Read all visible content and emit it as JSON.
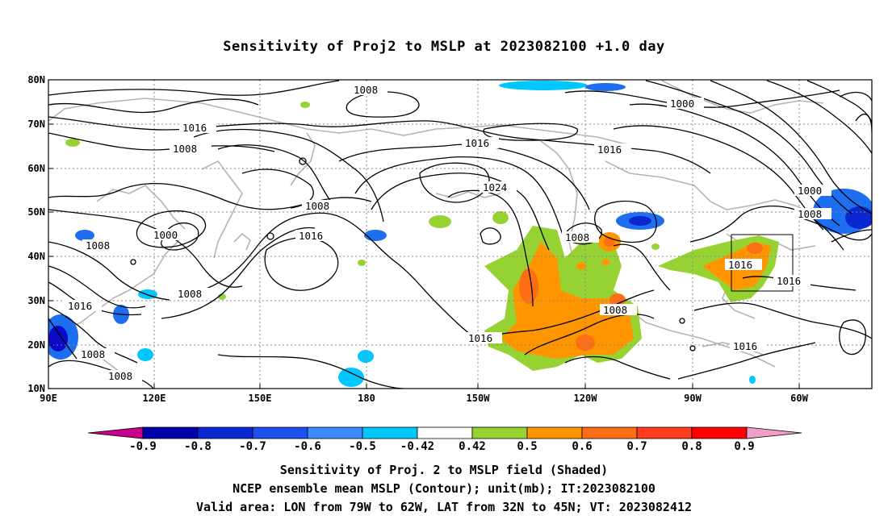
{
  "title": "Sensitivity of Proj2 to MSLP at 2023082100 +1.0 day",
  "map": {
    "lon_labels": [
      "90E",
      "120E",
      "150E",
      "180",
      "150W",
      "120W",
      "90W",
      "60W"
    ],
    "lat_labels": [
      "80N",
      "70N",
      "60N",
      "50N",
      "40N",
      "30N",
      "20N",
      "10N"
    ],
    "contour_labels": [
      "1008",
      "1016",
      "1008",
      "1008",
      "1000",
      "1008",
      "1016",
      "1008",
      "1016",
      "1008",
      "1016",
      "1024",
      "1016",
      "1008",
      "1008",
      "1016",
      "1000",
      "1016",
      "1000",
      "1008",
      "1016",
      "1016",
      "1008"
    ],
    "valid_box": {
      "lon_from": "79W",
      "lon_to": "62W",
      "lat_from": "32N",
      "lat_to": "45N"
    },
    "colors": {
      "neg_strong": "#0a0ac8",
      "neg_mid": "#1e6ef0",
      "neg_light": "#00c8ff",
      "pos_green": "#96d232",
      "pos_orange": "#ff9600",
      "pos_red": "#ff5a1e",
      "land": "#b4b4b4",
      "contour": "#000000"
    }
  },
  "colorbar": {
    "labels": [
      "-0.9",
      "-0.8",
      "-0.7",
      "-0.6",
      "-0.5",
      "-0.42",
      "0.42",
      "0.5",
      "0.6",
      "0.7",
      "0.8",
      "0.9"
    ],
    "colors": [
      "#c8008c",
      "#0000aa",
      "#0a28d2",
      "#1e50f0",
      "#3c8cff",
      "#00c8ff",
      "#ffffff",
      "#96d232",
      "#ff9600",
      "#ff6e14",
      "#ff3c1e",
      "#ff0000",
      "#f0a0c8"
    ]
  },
  "footer": {
    "line1": "Sensitivity of Proj. 2 to MSLP field (Shaded)",
    "line2": "NCEP ensemble mean MSLP (Contour); unit(mb); IT:2023082100",
    "line3": "Valid area: LON from 79W to 62W, LAT from 32N to 45N; VT: 2023082412"
  }
}
